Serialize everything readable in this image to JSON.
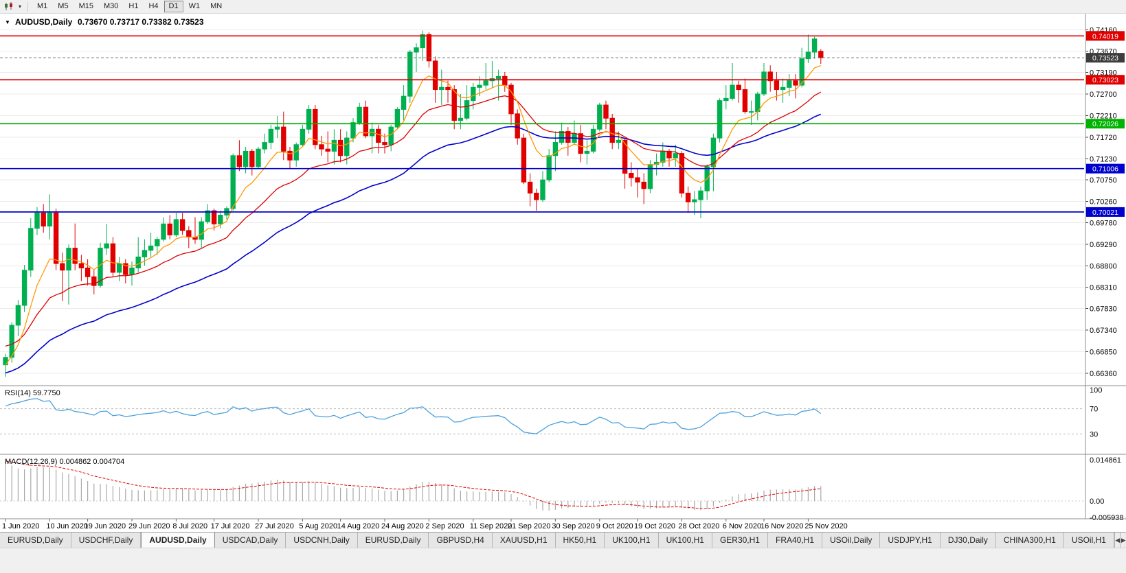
{
  "toolbar": {
    "chart_menu_icon": "▾",
    "timeframes": [
      "M1",
      "M5",
      "M15",
      "M30",
      "H1",
      "H4",
      "D1",
      "W1",
      "MN"
    ],
    "active_timeframe": "D1"
  },
  "chart_header": {
    "dropdown_icon": "▼",
    "symbol_period": "AUDUSD,Daily",
    "ohlc": "0.73670 0.73717 0.73382 0.73523"
  },
  "panes": {
    "rsi_label": "RSI(14) 59.7750",
    "macd_label": "MACD(12,26,9) 0.004862 0.004704"
  },
  "tabs": {
    "items": [
      "EURUSD,Daily",
      "USDCHF,Daily",
      "AUDUSD,Daily",
      "USDCAD,Daily",
      "USDCNH,Daily",
      "EURUSD,Daily",
      "GBPUSD,H4",
      "XAUUSD,H1",
      "HK50,H1",
      "UK100,H1",
      "UK100,H1",
      "GER30,H1",
      "FRA40,H1",
      "USOil,Daily",
      "USDJPY,H1",
      "DJ30,Daily",
      "CHINA300,H1",
      "USOil,H1"
    ],
    "active_index": 2,
    "scroll_left_icon": "◀",
    "scroll_right_icon": "▶"
  },
  "chart_data": {
    "type": "candlestick",
    "symbol": "AUDUSD",
    "timeframe": "Daily",
    "last_ohlc": {
      "open": 0.7367,
      "high": 0.73717,
      "low": 0.73382,
      "close": 0.73523
    },
    "current_price": {
      "label": "0.73523",
      "value": 0.73523,
      "bg": "#3c3c3c"
    },
    "y_ticks": [
      "0.74160",
      "0.73670",
      "0.73190",
      "0.72700",
      "0.72210",
      "0.71720",
      "0.71230",
      "0.70750",
      "0.70260",
      "0.69780",
      "0.69290",
      "0.68800",
      "0.68310",
      "0.67830",
      "0.67340",
      "0.66850",
      "0.66360"
    ],
    "x_labels": [
      "1 Jun 2020",
      "10 Jun 2020",
      "19 Jun 2020",
      "29 Jun 2020",
      "8 Jul 2020",
      "17 Jul 2020",
      "27 Jul 2020",
      "5 Aug 2020",
      "14 Aug 2020",
      "24 Aug 2020",
      "2 Sep 2020",
      "11 Sep 2020",
      "21 Sep 2020",
      "30 Sep 2020",
      "9 Oct 2020",
      "19 Oct 2020",
      "28 Oct 2020",
      "6 Nov 2020",
      "16 Nov 2020",
      "25 Nov 2020"
    ],
    "levels": [
      {
        "label": "0.74019",
        "value": 0.74019,
        "color": "#e00000"
      },
      {
        "label": "0.73023",
        "value": 0.73023,
        "color": "#e00000"
      },
      {
        "label": "0.72026",
        "value": 0.72026,
        "color": "#00b300"
      },
      {
        "label": "0.71006",
        "value": 0.71006,
        "color": "#0000cc"
      },
      {
        "label": "0.70021",
        "value": 0.70021,
        "color": "#0000cc"
      }
    ],
    "indicators": [
      {
        "name": "RSI",
        "params": "14",
        "value": "59.7750",
        "level_labels": [
          "100",
          "70",
          "30"
        ],
        "level_values": [
          100,
          70,
          30
        ]
      },
      {
        "name": "MACD",
        "params": "12,26,9",
        "values": [
          "0.004862",
          "0.004704"
        ],
        "axis_labels": [
          "0.014861",
          "0.00",
          "-0.005938"
        ],
        "axis_values": [
          0.014861,
          0,
          -0.005938
        ]
      }
    ],
    "colors": {
      "up": "#00b050",
      "down": "#e00000",
      "ma_fast": "#ff9800",
      "ma_mid": "#dd0000",
      "ma_slow": "#0000cc",
      "rsi_line": "#4aa0dc",
      "macd_hist": "#a8a8a8",
      "macd_signal": "#dd0000"
    },
    "candles": [
      [
        0.6655,
        0.668,
        0.6628,
        0.6672
      ],
      [
        0.6672,
        0.6752,
        0.666,
        0.6745
      ],
      [
        0.6745,
        0.6802,
        0.672,
        0.679
      ],
      [
        0.679,
        0.6882,
        0.6775,
        0.687
      ],
      [
        0.687,
        0.6988,
        0.6855,
        0.6965
      ],
      [
        0.6965,
        0.7013,
        0.695,
        0.7
      ],
      [
        0.7,
        0.702,
        0.6955,
        0.697
      ],
      [
        0.697,
        0.7042,
        0.694,
        0.7
      ],
      [
        0.7,
        0.701,
        0.687,
        0.6885
      ],
      [
        0.6885,
        0.691,
        0.68,
        0.687
      ],
      [
        0.687,
        0.6928,
        0.6792,
        0.692
      ],
      [
        0.692,
        0.6976,
        0.687,
        0.6885
      ],
      [
        0.6885,
        0.6905,
        0.6845,
        0.6875
      ],
      [
        0.6875,
        0.6895,
        0.6835,
        0.6855
      ],
      [
        0.6855,
        0.687,
        0.6815,
        0.6835
      ],
      [
        0.6835,
        0.6932,
        0.683,
        0.692
      ],
      [
        0.692,
        0.6975,
        0.6905,
        0.693
      ],
      [
        0.693,
        0.6945,
        0.6855,
        0.6865
      ],
      [
        0.6865,
        0.69,
        0.6845,
        0.6885
      ],
      [
        0.6885,
        0.6895,
        0.684,
        0.686
      ],
      [
        0.686,
        0.689,
        0.6835,
        0.6875
      ],
      [
        0.6875,
        0.6945,
        0.6865,
        0.69
      ],
      [
        0.69,
        0.694,
        0.688,
        0.6915
      ],
      [
        0.6915,
        0.6955,
        0.69,
        0.6925
      ],
      [
        0.6925,
        0.6945,
        0.6905,
        0.694
      ],
      [
        0.694,
        0.699,
        0.6935,
        0.6975
      ],
      [
        0.6975,
        0.6995,
        0.694,
        0.695
      ],
      [
        0.695,
        0.7,
        0.6945,
        0.6985
      ],
      [
        0.6985,
        0.7,
        0.695,
        0.696
      ],
      [
        0.696,
        0.697,
        0.692,
        0.6945
      ],
      [
        0.6945,
        0.699,
        0.693,
        0.694
      ],
      [
        0.694,
        0.699,
        0.692,
        0.698
      ],
      [
        0.698,
        0.702,
        0.6975,
        0.7005
      ],
      [
        0.7005,
        0.701,
        0.696,
        0.6975
      ],
      [
        0.6975,
        0.7005,
        0.6965,
        0.6995
      ],
      [
        0.6995,
        0.7015,
        0.6985,
        0.701
      ],
      [
        0.701,
        0.7135,
        0.7005,
        0.713
      ],
      [
        0.713,
        0.7165,
        0.7095,
        0.7105
      ],
      [
        0.7105,
        0.715,
        0.709,
        0.714
      ],
      [
        0.714,
        0.7145,
        0.7085,
        0.7105
      ],
      [
        0.7105,
        0.715,
        0.71,
        0.7145
      ],
      [
        0.7145,
        0.718,
        0.7135,
        0.716
      ],
      [
        0.716,
        0.72,
        0.7145,
        0.719
      ],
      [
        0.719,
        0.722,
        0.717,
        0.7195
      ],
      [
        0.7195,
        0.723,
        0.712,
        0.714
      ],
      [
        0.714,
        0.715,
        0.71,
        0.712
      ],
      [
        0.712,
        0.716,
        0.7105,
        0.7155
      ],
      [
        0.7155,
        0.72,
        0.715,
        0.719
      ],
      [
        0.719,
        0.7245,
        0.718,
        0.7235
      ],
      [
        0.7235,
        0.7245,
        0.7145,
        0.7155
      ],
      [
        0.7155,
        0.7175,
        0.713,
        0.7145
      ],
      [
        0.7145,
        0.7185,
        0.7115,
        0.714
      ],
      [
        0.714,
        0.719,
        0.711,
        0.7165
      ],
      [
        0.7165,
        0.719,
        0.7115,
        0.713
      ],
      [
        0.713,
        0.7185,
        0.711,
        0.717
      ],
      [
        0.717,
        0.7215,
        0.716,
        0.7205
      ],
      [
        0.7205,
        0.725,
        0.72,
        0.724
      ],
      [
        0.724,
        0.7255,
        0.717,
        0.7175
      ],
      [
        0.7175,
        0.7205,
        0.7135,
        0.719
      ],
      [
        0.719,
        0.72,
        0.7135,
        0.716
      ],
      [
        0.716,
        0.718,
        0.7135,
        0.7155
      ],
      [
        0.7155,
        0.72,
        0.714,
        0.7195
      ],
      [
        0.7195,
        0.724,
        0.719,
        0.7235
      ],
      [
        0.7235,
        0.729,
        0.721,
        0.7265
      ],
      [
        0.7265,
        0.737,
        0.725,
        0.7365
      ],
      [
        0.7365,
        0.7385,
        0.732,
        0.7375
      ],
      [
        0.7375,
        0.7414,
        0.7345,
        0.7405
      ],
      [
        0.7405,
        0.741,
        0.733,
        0.7345
      ],
      [
        0.7345,
        0.7355,
        0.725,
        0.728
      ],
      [
        0.728,
        0.7325,
        0.7245,
        0.7285
      ],
      [
        0.7285,
        0.73,
        0.725,
        0.728
      ],
      [
        0.728,
        0.729,
        0.719,
        0.721
      ],
      [
        0.721,
        0.727,
        0.719,
        0.7215
      ],
      [
        0.7215,
        0.729,
        0.721,
        0.7255
      ],
      [
        0.7255,
        0.7295,
        0.7235,
        0.7285
      ],
      [
        0.7285,
        0.731,
        0.7265,
        0.729
      ],
      [
        0.729,
        0.734,
        0.728,
        0.73
      ],
      [
        0.73,
        0.7345,
        0.7285,
        0.7305
      ],
      [
        0.7305,
        0.7325,
        0.7255,
        0.731
      ],
      [
        0.731,
        0.732,
        0.7275,
        0.729
      ],
      [
        0.729,
        0.7295,
        0.72,
        0.7225
      ],
      [
        0.7225,
        0.7235,
        0.7155,
        0.717
      ],
      [
        0.717,
        0.718,
        0.7065,
        0.707
      ],
      [
        0.707,
        0.709,
        0.7015,
        0.7045
      ],
      [
        0.7045,
        0.7055,
        0.7005,
        0.703
      ],
      [
        0.703,
        0.7095,
        0.7025,
        0.7075
      ],
      [
        0.7075,
        0.7145,
        0.707,
        0.713
      ],
      [
        0.713,
        0.7185,
        0.7095,
        0.716
      ],
      [
        0.716,
        0.7205,
        0.7155,
        0.7185
      ],
      [
        0.7185,
        0.7195,
        0.713,
        0.716
      ],
      [
        0.716,
        0.721,
        0.7155,
        0.718
      ],
      [
        0.718,
        0.72,
        0.7115,
        0.7135
      ],
      [
        0.7135,
        0.7165,
        0.711,
        0.714
      ],
      [
        0.714,
        0.72,
        0.7135,
        0.719
      ],
      [
        0.719,
        0.725,
        0.7185,
        0.7245
      ],
      [
        0.7245,
        0.7255,
        0.719,
        0.7215
      ],
      [
        0.7215,
        0.7225,
        0.7145,
        0.716
      ],
      [
        0.716,
        0.7185,
        0.7145,
        0.7165
      ],
      [
        0.7165,
        0.717,
        0.7055,
        0.709
      ],
      [
        0.709,
        0.7115,
        0.706,
        0.708
      ],
      [
        0.708,
        0.71,
        0.7035,
        0.707
      ],
      [
        0.707,
        0.709,
        0.702,
        0.7055
      ],
      [
        0.7055,
        0.712,
        0.7045,
        0.711
      ],
      [
        0.711,
        0.7135,
        0.7085,
        0.7115
      ],
      [
        0.7115,
        0.716,
        0.7105,
        0.714
      ],
      [
        0.714,
        0.7145,
        0.7105,
        0.7125
      ],
      [
        0.7125,
        0.7155,
        0.7105,
        0.7135
      ],
      [
        0.7135,
        0.714,
        0.7035,
        0.7045
      ],
      [
        0.7045,
        0.706,
        0.7,
        0.7025
      ],
      [
        0.7025,
        0.705,
        0.6995,
        0.703
      ],
      [
        0.703,
        0.706,
        0.6988,
        0.705
      ],
      [
        0.705,
        0.711,
        0.703,
        0.7105
      ],
      [
        0.7105,
        0.718,
        0.7049,
        0.717
      ],
      [
        0.717,
        0.726,
        0.716,
        0.7255
      ],
      [
        0.7255,
        0.729,
        0.7235,
        0.726
      ],
      [
        0.726,
        0.734,
        0.7255,
        0.729
      ],
      [
        0.729,
        0.73,
        0.725,
        0.728
      ],
      [
        0.728,
        0.7305,
        0.7225,
        0.723
      ],
      [
        0.723,
        0.7255,
        0.72,
        0.723
      ],
      [
        0.723,
        0.7275,
        0.721,
        0.727
      ],
      [
        0.727,
        0.734,
        0.7265,
        0.732
      ],
      [
        0.732,
        0.7335,
        0.7275,
        0.73
      ],
      [
        0.73,
        0.732,
        0.7255,
        0.728
      ],
      [
        0.728,
        0.7305,
        0.725,
        0.7285
      ],
      [
        0.7285,
        0.7315,
        0.7265,
        0.73
      ],
      [
        0.73,
        0.7315,
        0.726,
        0.729
      ],
      [
        0.729,
        0.7375,
        0.7285,
        0.735
      ],
      [
        0.735,
        0.7405,
        0.734,
        0.7365
      ],
      [
        0.7365,
        0.74,
        0.735,
        0.7395
      ],
      [
        0.7367,
        0.73717,
        0.73382,
        0.73523
      ]
    ]
  }
}
